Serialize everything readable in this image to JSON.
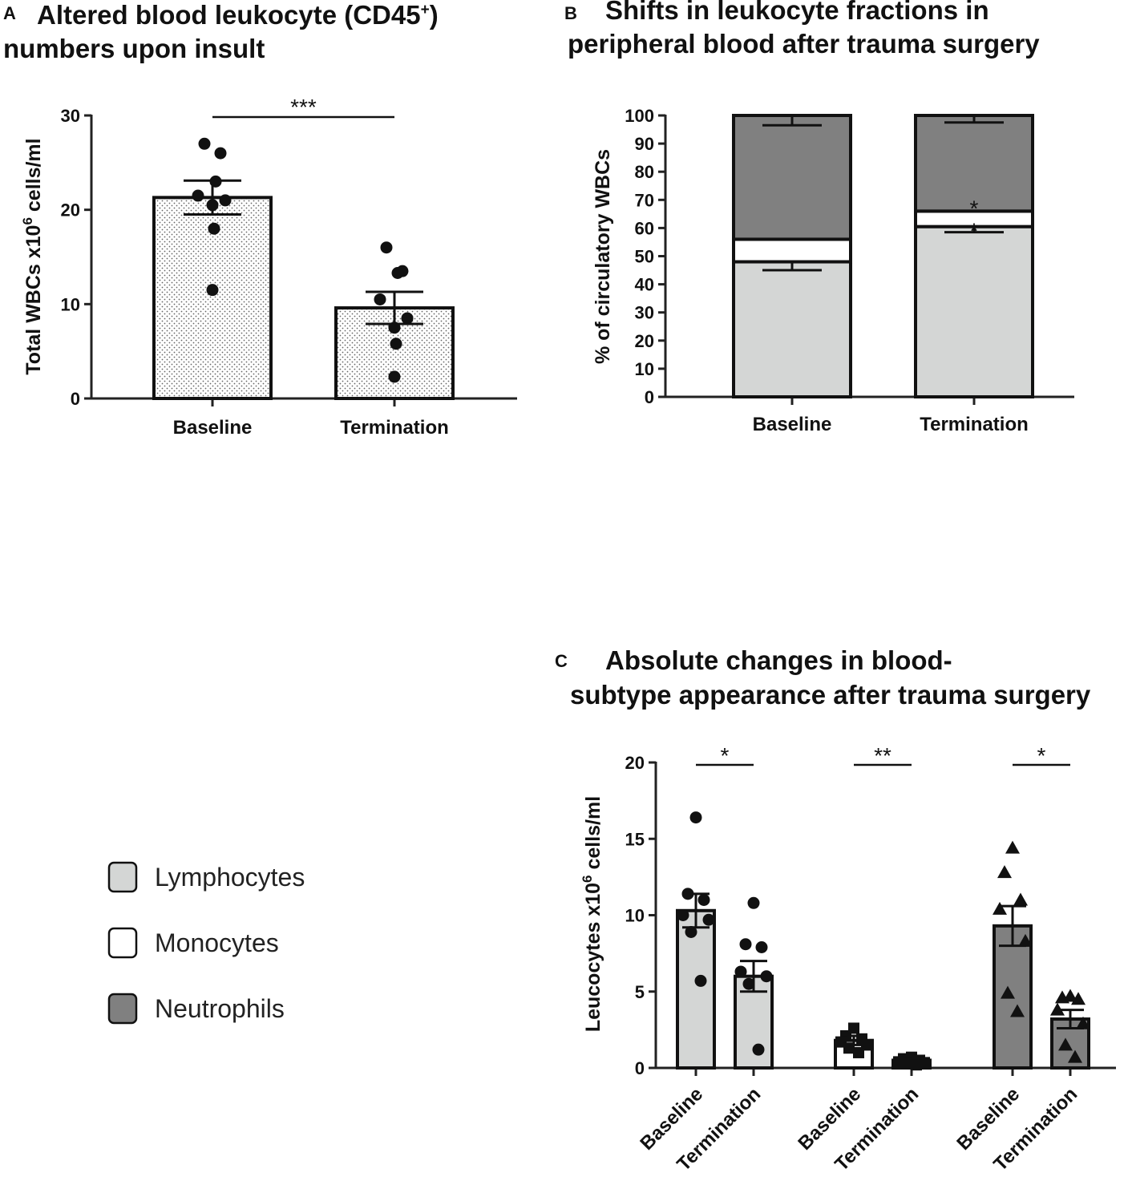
{
  "figure": {
    "legend": [
      {
        "label": "Lymphocytes",
        "color": "#d4d6d5"
      },
      {
        "label": "Monocytes",
        "color": "#ffffff"
      },
      {
        "label": "Neutrophils",
        "color": "#808080"
      }
    ]
  },
  "chart_data": [
    {
      "panel": "A",
      "type": "bar",
      "title_line1": "Altered blood leukocyte (CD45",
      "title_sup": "+",
      "title_close": ")",
      "title_line2": "numbers upon insult",
      "ylabel_prefix": "Total WBCs x10",
      "ylabel_sup": "6",
      "ylabel_suffix": " cells/ml",
      "ylim": [
        0,
        30
      ],
      "yticks": [
        0,
        10,
        20,
        30
      ],
      "categories": [
        "Baseline",
        "Termination"
      ],
      "values": [
        21.3,
        9.6
      ],
      "sem": [
        1.8,
        1.7
      ],
      "points": [
        [
          27.0,
          26.0,
          23.0,
          21.5,
          21.0,
          20.5,
          18.0,
          11.5
        ],
        [
          16.0,
          13.5,
          13.3,
          10.5,
          8.5,
          7.5,
          5.8,
          2.3
        ]
      ],
      "significance": "***",
      "fill": "dotted"
    },
    {
      "panel": "B",
      "type": "stacked-bar",
      "title_line1": "Shifts in leukocyte fractions in",
      "title_line2": "peripheral blood after trauma surgery",
      "ylabel": "% of circulatory WBCs",
      "ylim": [
        0,
        100
      ],
      "yticks": [
        0,
        10,
        20,
        30,
        40,
        50,
        60,
        70,
        80,
        90,
        100
      ],
      "categories": [
        "Baseline",
        "Termination"
      ],
      "series": [
        {
          "name": "Lymphocytes",
          "values": [
            48,
            60.5
          ],
          "err": [
            3,
            2
          ],
          "color": "#d4d6d5"
        },
        {
          "name": "Monocytes",
          "values": [
            8,
            5.5
          ],
          "color": "#ffffff"
        },
        {
          "name": "Neutrophils",
          "values": [
            44,
            34
          ],
          "err": [
            3.5,
            2.5
          ],
          "color": "#808080"
        }
      ],
      "annotations": [
        {
          "category": "Termination",
          "text": "*",
          "y": 70
        },
        {
          "category": "Termination",
          "text": "*",
          "y": 62
        }
      ]
    },
    {
      "panel": "C",
      "type": "bar",
      "title_line1": "Absolute changes in blood-",
      "title_line2": "subtype appearance after trauma surgery",
      "ylabel_prefix": "Leucocytes x10",
      "ylabel_sup": "6",
      "ylabel_suffix": " cells/ml",
      "ylim": [
        0,
        20
      ],
      "yticks": [
        0,
        5,
        10,
        15,
        20
      ],
      "categories": [
        "Baseline",
        "Termination",
        "Baseline",
        "Termination",
        "Baseline",
        "Termination"
      ],
      "groups": [
        "Lymphocytes",
        "Monocytes",
        "Neutrophils"
      ],
      "values": [
        10.3,
        6.0,
        1.8,
        0.5,
        9.3,
        3.2
      ],
      "sem": [
        1.1,
        1.0,
        0.3,
        0.1,
        1.3,
        0.6
      ],
      "colors": [
        "#d4d6d5",
        "#d4d6d5",
        "#ffffff",
        "#ffffff",
        "#808080",
        "#808080"
      ],
      "markers": [
        "circle",
        "circle",
        "square",
        "square",
        "triangle",
        "triangle"
      ],
      "points": [
        [
          16.4,
          11.4,
          11.0,
          10.0,
          9.7,
          8.9,
          5.7
        ],
        [
          10.8,
          8.1,
          7.9,
          6.3,
          6.0,
          5.5,
          1.2
        ],
        [
          2.6,
          2.1,
          1.9,
          1.7,
          1.5,
          1.3,
          1.0
        ],
        [
          0.7,
          0.6,
          0.5,
          0.4,
          0.35,
          0.3,
          0.2
        ],
        [
          14.4,
          12.8,
          11.0,
          10.4,
          8.3,
          4.9,
          3.7
        ],
        [
          4.7,
          4.6,
          4.5,
          3.8,
          2.9,
          1.5,
          0.7
        ]
      ],
      "significance": [
        "*",
        "**",
        "*"
      ]
    }
  ]
}
